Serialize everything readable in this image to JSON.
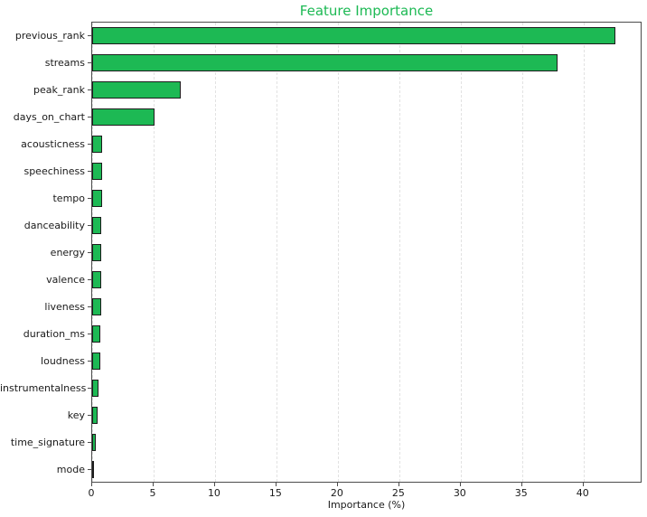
{
  "chart_data": {
    "type": "bar",
    "orientation": "horizontal",
    "title": "Feature Importance",
    "xlabel": "Importance (%)",
    "ylabel": "",
    "categories": [
      "previous_rank",
      "streams",
      "peak_rank",
      "days_on_chart",
      "acousticness",
      "speechiness",
      "tempo",
      "danceability",
      "energy",
      "valence",
      "liveness",
      "duration_ms",
      "loudness",
      "instrumentalness",
      "key",
      "time_signature",
      "mode"
    ],
    "values": [
      42.6,
      37.9,
      7.2,
      5.1,
      0.82,
      0.8,
      0.78,
      0.76,
      0.74,
      0.72,
      0.7,
      0.68,
      0.66,
      0.5,
      0.45,
      0.3,
      0.1
    ],
    "xticks": [
      0,
      5,
      10,
      15,
      20,
      25,
      30,
      35,
      40
    ],
    "xlim": [
      0,
      44.8
    ],
    "grid": "vertical-dashed",
    "legend": "none",
    "colors": {
      "bar_fill": "#1DB954",
      "bar_edge": "#1c1c1c",
      "title": "#1DB954",
      "spine": "#4c4c4c",
      "gridline": "#e2e2e2",
      "tick_text": "#1a1a1a"
    }
  }
}
